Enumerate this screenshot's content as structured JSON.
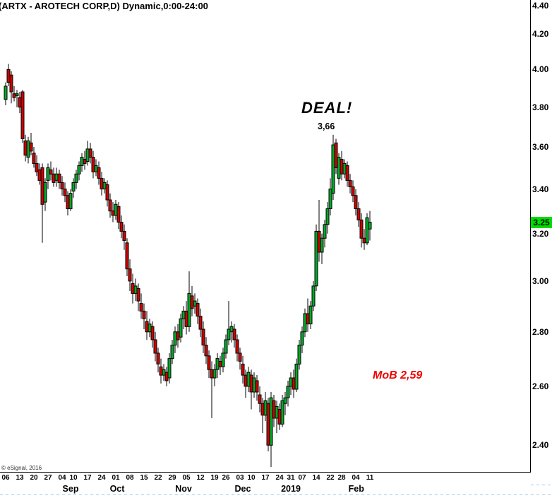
{
  "title": "(ARTX - AROTECH CORP,D) Dynamic,0:00-24:00",
  "copyright": "© eSignal, 2016",
  "annotations": {
    "deal": "DEAL!",
    "peak": "3,66",
    "mob": "MoB 2,59"
  },
  "chart_data": {
    "type": "candlestick",
    "symbol": "ARTX - AROTECH CORP",
    "interval": "D",
    "session": "Dynamic,0:00-24:00",
    "last_price": "3.25",
    "last_price_value": 3.25,
    "colors": {
      "up": "#00a82a",
      "down": "#ce0000",
      "wick": "#000000",
      "border": "#000000",
      "badge_bg": "#00dc00",
      "annotation_red": "#f20000",
      "separator_blue": "#a8c8e6"
    },
    "y_axis": {
      "scale": "log",
      "side": "right",
      "ticks": [
        4.4,
        4.2,
        4.0,
        3.8,
        3.6,
        3.4,
        3.2,
        3.0,
        2.8,
        2.6,
        2.4
      ],
      "range": [
        2.33,
        4.42
      ]
    },
    "x_axis": {
      "week_ticks": [
        {
          "i": 0,
          "label": "06"
        },
        {
          "i": 5,
          "label": "13"
        },
        {
          "i": 10,
          "label": "20"
        },
        {
          "i": 15,
          "label": "27"
        },
        {
          "i": 20,
          "label": "04"
        },
        {
          "i": 24,
          "label": "10"
        },
        {
          "i": 29,
          "label": "17"
        },
        {
          "i": 34,
          "label": "24"
        },
        {
          "i": 39,
          "label": "01"
        },
        {
          "i": 44,
          "label": "08"
        },
        {
          "i": 49,
          "label": "15"
        },
        {
          "i": 54,
          "label": "22"
        },
        {
          "i": 59,
          "label": "29"
        },
        {
          "i": 64,
          "label": "05"
        },
        {
          "i": 69,
          "label": "12"
        },
        {
          "i": 74,
          "label": "19"
        },
        {
          "i": 78,
          "label": "26"
        },
        {
          "i": 83,
          "label": "03"
        },
        {
          "i": 87,
          "label": "10"
        },
        {
          "i": 92,
          "label": "17"
        },
        {
          "i": 97,
          "label": "24"
        },
        {
          "i": 101,
          "label": "31"
        },
        {
          "i": 105,
          "label": "07"
        },
        {
          "i": 110,
          "label": "14"
        },
        {
          "i": 115,
          "label": "22"
        },
        {
          "i": 119,
          "label": "28"
        },
        {
          "i": 124,
          "label": "04"
        },
        {
          "i": 129,
          "label": "11"
        }
      ],
      "months": [
        {
          "i": 23,
          "label": "Sep"
        },
        {
          "i": 39.5,
          "label": "Oct"
        },
        {
          "i": 63,
          "label": "Nov"
        },
        {
          "i": 84,
          "label": "Dec"
        },
        {
          "i": 101,
          "label": "2019"
        },
        {
          "i": 124.2,
          "label": "Feb"
        }
      ]
    },
    "ohlc": [
      [
        "2018-08-06",
        3.84,
        3.93,
        3.81,
        3.91
      ],
      [
        "2018-08-07",
        4.0,
        4.03,
        3.91,
        3.93
      ],
      [
        "2018-08-08",
        3.97,
        3.99,
        3.82,
        3.88
      ],
      [
        "2018-08-09",
        3.87,
        3.91,
        3.83,
        3.85
      ],
      [
        "2018-08-10",
        3.86,
        3.89,
        3.8,
        3.87
      ],
      [
        "2018-08-13",
        3.85,
        3.88,
        3.77,
        3.8
      ],
      [
        "2018-08-14",
        3.88,
        3.89,
        3.62,
        3.64
      ],
      [
        "2018-08-15",
        3.63,
        3.66,
        3.53,
        3.56
      ],
      [
        "2018-08-16",
        3.55,
        3.65,
        3.52,
        3.63
      ],
      [
        "2018-08-17",
        3.62,
        3.67,
        3.56,
        3.58
      ],
      [
        "2018-08-20",
        3.57,
        3.6,
        3.5,
        3.52
      ],
      [
        "2018-08-21",
        3.52,
        3.56,
        3.46,
        3.48
      ],
      [
        "2018-08-22",
        3.49,
        3.52,
        3.42,
        3.44
      ],
      [
        "2018-08-23",
        3.5,
        3.52,
        3.16,
        3.33
      ],
      [
        "2018-08-24",
        3.34,
        3.45,
        3.3,
        3.43
      ],
      [
        "2018-08-27",
        3.44,
        3.52,
        3.4,
        3.5
      ],
      [
        "2018-08-28",
        3.49,
        3.53,
        3.44,
        3.47
      ],
      [
        "2018-08-29",
        3.47,
        3.5,
        3.41,
        3.43
      ],
      [
        "2018-08-30",
        3.44,
        3.5,
        3.41,
        3.47
      ],
      [
        "2018-08-31",
        3.47,
        3.49,
        3.4,
        3.43
      ],
      [
        "2018-09-04",
        3.43,
        3.46,
        3.37,
        3.4
      ],
      [
        "2018-09-05",
        3.4,
        3.43,
        3.34,
        3.37
      ],
      [
        "2018-09-06",
        3.37,
        3.39,
        3.28,
        3.31
      ],
      [
        "2018-09-07",
        3.31,
        3.4,
        3.3,
        3.38
      ],
      [
        "2018-09-10",
        3.39,
        3.45,
        3.36,
        3.43
      ],
      [
        "2018-09-11",
        3.43,
        3.49,
        3.4,
        3.47
      ],
      [
        "2018-09-12",
        3.47,
        3.53,
        3.44,
        3.51
      ],
      [
        "2018-09-13",
        3.51,
        3.57,
        3.48,
        3.55
      ],
      [
        "2018-09-14",
        3.54,
        3.58,
        3.49,
        3.52
      ],
      [
        "2018-09-17",
        3.53,
        3.63,
        3.51,
        3.59
      ],
      [
        "2018-09-18",
        3.59,
        3.62,
        3.52,
        3.55
      ],
      [
        "2018-09-19",
        3.55,
        3.58,
        3.45,
        3.48
      ],
      [
        "2018-09-20",
        3.48,
        3.54,
        3.46,
        3.51
      ],
      [
        "2018-09-21",
        3.5,
        3.53,
        3.42,
        3.45
      ],
      [
        "2018-09-24",
        3.45,
        3.48,
        3.37,
        3.4
      ],
      [
        "2018-09-25",
        3.4,
        3.45,
        3.38,
        3.43
      ],
      [
        "2018-09-26",
        3.42,
        3.44,
        3.32,
        3.35
      ],
      [
        "2018-09-27",
        3.35,
        3.38,
        3.27,
        3.3
      ],
      [
        "2018-09-28",
        3.3,
        3.34,
        3.25,
        3.28
      ],
      [
        "2018-10-01",
        3.28,
        3.35,
        3.26,
        3.33
      ],
      [
        "2018-10-02",
        3.32,
        3.34,
        3.22,
        3.25
      ],
      [
        "2018-10-03",
        3.25,
        3.28,
        3.18,
        3.21
      ],
      [
        "2018-10-04",
        3.21,
        3.24,
        3.13,
        3.17
      ],
      [
        "2018-10-05",
        3.16,
        3.18,
        3.02,
        3.05
      ],
      [
        "2018-10-08",
        3.05,
        3.09,
        2.96,
        3.0
      ],
      [
        "2018-10-09",
        2.99,
        3.03,
        2.91,
        2.95
      ],
      [
        "2018-10-10",
        2.95,
        3.01,
        2.92,
        2.98
      ],
      [
        "2018-10-11",
        2.97,
        2.99,
        2.88,
        2.92
      ],
      [
        "2018-10-12",
        2.91,
        2.95,
        2.85,
        2.88
      ],
      [
        "2018-10-15",
        2.88,
        2.91,
        2.81,
        2.85
      ],
      [
        "2018-10-16",
        2.84,
        2.88,
        2.77,
        2.8
      ],
      [
        "2018-10-17",
        2.8,
        2.85,
        2.78,
        2.83
      ],
      [
        "2018-10-18",
        2.82,
        2.84,
        2.74,
        2.77
      ],
      [
        "2018-10-19",
        2.77,
        2.8,
        2.69,
        2.72
      ],
      [
        "2018-10-22",
        2.72,
        2.74,
        2.65,
        2.68
      ],
      [
        "2018-10-23",
        2.67,
        2.7,
        2.61,
        2.64
      ],
      [
        "2018-10-24",
        2.64,
        2.68,
        2.62,
        2.66
      ],
      [
        "2018-10-25",
        2.65,
        2.67,
        2.6,
        2.62
      ],
      [
        "2018-10-26",
        2.63,
        2.72,
        2.61,
        2.7
      ],
      [
        "2018-10-29",
        2.7,
        2.77,
        2.68,
        2.75
      ],
      [
        "2018-10-30",
        2.75,
        2.82,
        2.72,
        2.8
      ],
      [
        "2018-10-31",
        2.8,
        2.83,
        2.74,
        2.77
      ],
      [
        "2018-11-01",
        2.78,
        2.87,
        2.76,
        2.85
      ],
      [
        "2018-11-02",
        2.85,
        2.9,
        2.81,
        2.88
      ],
      [
        "2018-11-05",
        2.88,
        2.92,
        2.79,
        2.82
      ],
      [
        "2018-11-06",
        2.82,
        3.04,
        2.8,
        2.95
      ],
      [
        "2018-11-07",
        2.94,
        2.98,
        2.86,
        2.89
      ],
      [
        "2018-11-08",
        2.9,
        2.95,
        2.87,
        2.92
      ],
      [
        "2018-11-09",
        2.91,
        2.93,
        2.83,
        2.86
      ],
      [
        "2018-11-12",
        2.86,
        2.89,
        2.78,
        2.81
      ],
      [
        "2018-11-13",
        2.81,
        2.84,
        2.72,
        2.75
      ],
      [
        "2018-11-14",
        2.75,
        2.78,
        2.68,
        2.71
      ],
      [
        "2018-11-15",
        2.71,
        2.73,
        2.63,
        2.66
      ],
      [
        "2018-11-16",
        2.66,
        2.69,
        2.49,
        2.63
      ],
      [
        "2018-11-19",
        2.63,
        2.68,
        2.6,
        2.66
      ],
      [
        "2018-11-20",
        2.66,
        2.72,
        2.63,
        2.7
      ],
      [
        "2018-11-21",
        2.69,
        2.71,
        2.64,
        2.67
      ],
      [
        "2018-11-23",
        2.67,
        2.74,
        2.65,
        2.72
      ],
      [
        "2018-11-26",
        2.72,
        2.79,
        2.7,
        2.77
      ],
      [
        "2018-11-27",
        2.77,
        2.92,
        2.75,
        2.81
      ],
      [
        "2018-11-28",
        2.8,
        2.84,
        2.76,
        2.82
      ],
      [
        "2018-11-29",
        2.81,
        2.83,
        2.74,
        2.77
      ],
      [
        "2018-11-30",
        2.77,
        2.79,
        2.69,
        2.72
      ],
      [
        "2018-12-03",
        2.72,
        2.74,
        2.66,
        2.69
      ],
      [
        "2018-12-04",
        2.68,
        2.71,
        2.61,
        2.64
      ],
      [
        "2018-12-06",
        2.64,
        2.66,
        2.56,
        2.6
      ],
      [
        "2018-12-07",
        2.6,
        2.67,
        2.58,
        2.65
      ],
      [
        "2018-12-10",
        2.64,
        2.66,
        2.52,
        2.58
      ],
      [
        "2018-12-11",
        2.58,
        2.65,
        2.56,
        2.63
      ],
      [
        "2018-12-12",
        2.62,
        2.64,
        2.55,
        2.58
      ],
      [
        "2018-12-13",
        2.57,
        2.6,
        2.51,
        2.54
      ],
      [
        "2018-12-14",
        2.54,
        2.56,
        2.44,
        2.5
      ],
      [
        "2018-12-17",
        2.5,
        2.58,
        2.48,
        2.55
      ],
      [
        "2018-12-18",
        2.54,
        2.56,
        2.38,
        2.4
      ],
      [
        "2018-12-19",
        2.4,
        2.58,
        2.33,
        2.56
      ],
      [
        "2018-12-20",
        2.55,
        2.57,
        2.46,
        2.49
      ],
      [
        "2018-12-21",
        2.49,
        2.55,
        2.44,
        2.53
      ],
      [
        "2018-12-24",
        2.52,
        2.54,
        2.45,
        2.47
      ],
      [
        "2018-12-26",
        2.47,
        2.57,
        2.46,
        2.55
      ],
      [
        "2018-12-27",
        2.54,
        2.58,
        2.5,
        2.56
      ],
      [
        "2018-12-28",
        2.56,
        2.62,
        2.53,
        2.6
      ],
      [
        "2018-12-31",
        2.6,
        2.65,
        2.57,
        2.63
      ],
      [
        "2019-01-02",
        2.63,
        2.66,
        2.56,
        2.59
      ],
      [
        "2019-01-03",
        2.59,
        2.7,
        2.58,
        2.68
      ],
      [
        "2019-01-04",
        2.68,
        2.77,
        2.66,
        2.75
      ],
      [
        "2019-01-07",
        2.75,
        2.82,
        2.72,
        2.8
      ],
      [
        "2019-01-08",
        2.8,
        2.89,
        2.78,
        2.87
      ],
      [
        "2019-01-09",
        2.87,
        2.93,
        2.8,
        2.83
      ],
      [
        "2019-01-10",
        2.83,
        2.92,
        2.81,
        2.9
      ],
      [
        "2019-01-11",
        2.9,
        3.0,
        2.88,
        2.98
      ],
      [
        "2019-01-14",
        2.98,
        3.24,
        2.96,
        3.21
      ],
      [
        "2019-01-15",
        3.21,
        3.35,
        3.08,
        3.12
      ],
      [
        "2019-01-16",
        3.12,
        3.2,
        3.07,
        3.18
      ],
      [
        "2019-01-17",
        3.18,
        3.26,
        3.14,
        3.24
      ],
      [
        "2019-01-18",
        3.24,
        3.34,
        3.2,
        3.31
      ],
      [
        "2019-01-22",
        3.31,
        3.45,
        3.28,
        3.4
      ],
      [
        "2019-01-23",
        3.38,
        3.66,
        3.35,
        3.61
      ],
      [
        "2019-01-24",
        3.62,
        3.64,
        3.47,
        3.5
      ],
      [
        "2019-01-25",
        3.45,
        3.57,
        3.42,
        3.55
      ],
      [
        "2019-01-28",
        3.54,
        3.58,
        3.44,
        3.47
      ],
      [
        "2019-01-29",
        3.47,
        3.54,
        3.45,
        3.52
      ],
      [
        "2019-01-30",
        3.51,
        3.53,
        3.41,
        3.44
      ],
      [
        "2019-01-31",
        3.44,
        3.47,
        3.38,
        3.41
      ],
      [
        "2019-02-01",
        3.41,
        3.44,
        3.34,
        3.37
      ],
      [
        "2019-02-04",
        3.37,
        3.4,
        3.28,
        3.31
      ],
      [
        "2019-02-05",
        3.31,
        3.34,
        3.23,
        3.26
      ],
      [
        "2019-02-06",
        3.26,
        3.29,
        3.14,
        3.18
      ],
      [
        "2019-02-07",
        3.18,
        3.22,
        3.13,
        3.16
      ],
      [
        "2019-02-08",
        3.16,
        3.29,
        3.15,
        3.27
      ],
      [
        "2019-02-11",
        3.22,
        3.3,
        3.17,
        3.25
      ]
    ]
  }
}
